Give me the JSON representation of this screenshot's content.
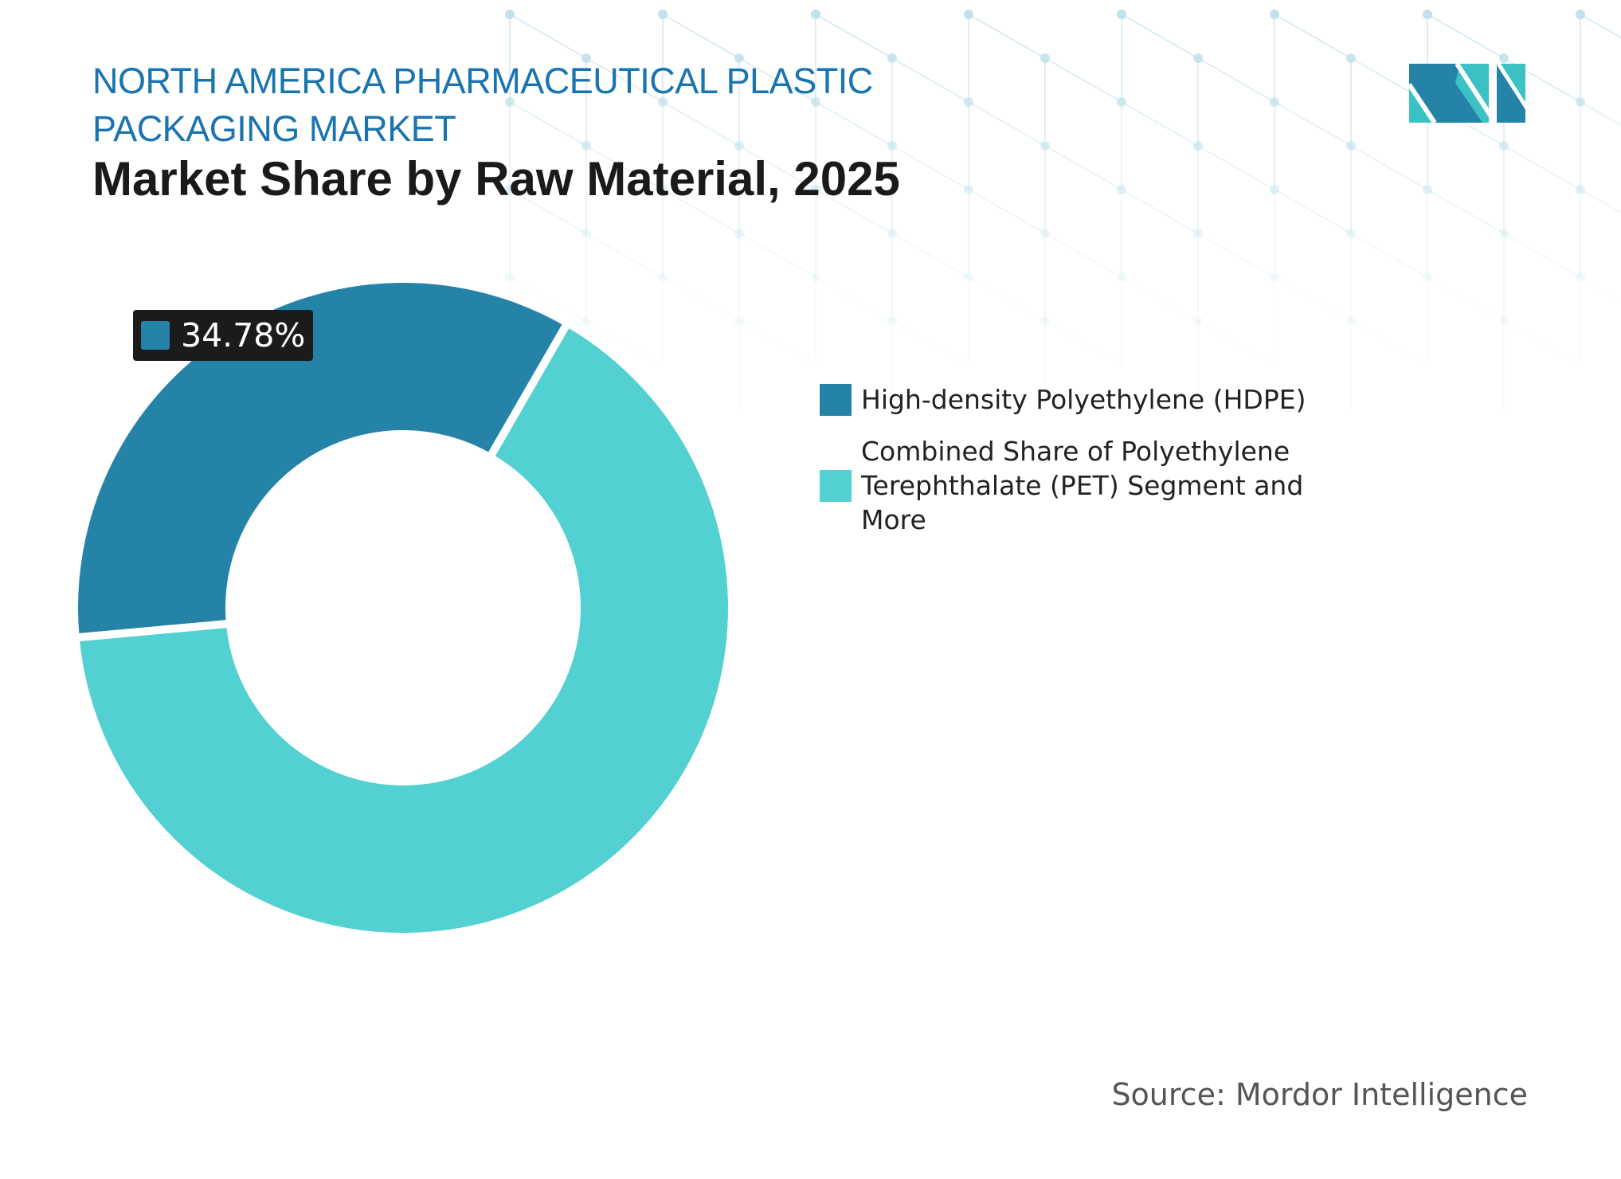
{
  "header": {
    "title_line1": "NORTH AMERICA PHARMACEUTICAL PLASTIC PACKAGING MARKET",
    "subtitle": "Market Share by Raw Material, 2025"
  },
  "source": "Source: Mordor Intelligence",
  "colors": {
    "title": "#1a74b0",
    "hdpe": "#2683a8",
    "other": "#52d0d2"
  },
  "chart_data": {
    "type": "pie",
    "subtype": "donut",
    "categories": [
      "High-density Polyethylene (HDPE)",
      "Combined Share of Polyethylene Terephthalate (PET) Segment and More"
    ],
    "values": [
      34.78,
      65.22
    ],
    "data_labels": [
      "34.78%"
    ],
    "legend_placement": "right"
  }
}
